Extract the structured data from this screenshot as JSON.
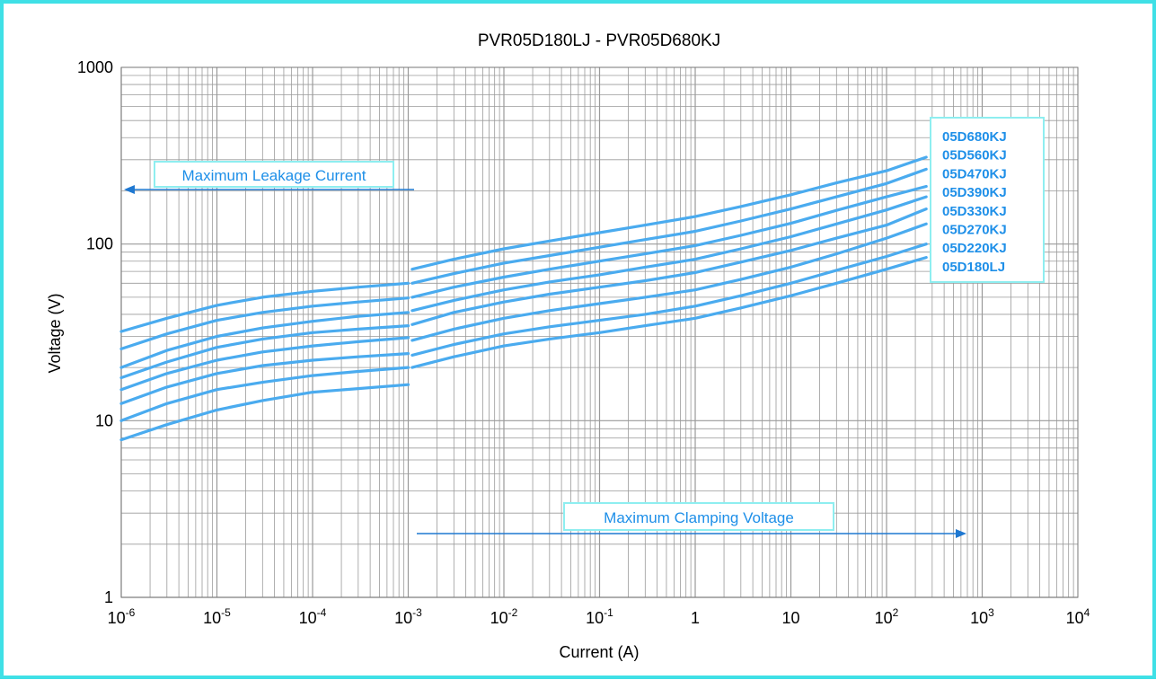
{
  "chart_data": {
    "type": "line",
    "title": "PVR05D180LJ - PVR05D680KJ",
    "xlabel": "Current (A)",
    "ylabel": "Voltage (V)",
    "x_scale": "log",
    "y_scale": "log",
    "xlim": [
      1e-06,
      10000
    ],
    "ylim": [
      1,
      1000
    ],
    "grid": true,
    "x_ticks": [
      {
        "value": 1e-06,
        "base": "10",
        "exp": "-6"
      },
      {
        "value": 1e-05,
        "base": "10",
        "exp": "-5"
      },
      {
        "value": 0.0001,
        "base": "10",
        "exp": "-4"
      },
      {
        "value": 0.001,
        "base": "10",
        "exp": "-3"
      },
      {
        "value": 0.01,
        "base": "10",
        "exp": "-2"
      },
      {
        "value": 0.1,
        "base": "10",
        "exp": "-1"
      },
      {
        "value": 1,
        "base": "1",
        "exp": ""
      },
      {
        "value": 10,
        "base": "10",
        "exp": ""
      },
      {
        "value": 100,
        "base": "10",
        "exp": "2"
      },
      {
        "value": 1000,
        "base": "10",
        "exp": "3"
      },
      {
        "value": 10000,
        "base": "10",
        "exp": "4"
      }
    ],
    "y_ticks": [
      {
        "value": 1,
        "label": "1"
      },
      {
        "value": 10,
        "label": "10"
      },
      {
        "value": 100,
        "label": "100"
      },
      {
        "value": 1000,
        "label": "1000"
      }
    ],
    "annotations": [
      {
        "text": "Maximum Leakage Current",
        "direction": "left",
        "y": 210,
        "x_from": 0.001,
        "x_to": 1e-06
      },
      {
        "text": "Maximum Clamping Voltage",
        "direction": "right",
        "y": 2.38,
        "x_from": 0.0011,
        "x_to": 800
      }
    ],
    "legend_position": "right",
    "colors": {
      "line": "#4aabef",
      "legend_text": "#1e8fe8",
      "legend_border": "#8eeef0",
      "grid": "#9a9a9a",
      "frame": "#3fe0e6",
      "arrow": "#1f78d1"
    },
    "series": [
      {
        "name": "05D680KJ",
        "leakage": [
          [
            1e-06,
            32
          ],
          [
            3e-06,
            38
          ],
          [
            1e-05,
            45
          ],
          [
            3e-05,
            50
          ],
          [
            0.0001,
            54
          ],
          [
            0.0003,
            57
          ],
          [
            0.001,
            60
          ]
        ],
        "clamping": [
          [
            0.0011,
            72
          ],
          [
            0.003,
            82
          ],
          [
            0.01,
            94
          ],
          [
            0.03,
            104
          ],
          [
            0.1,
            116
          ],
          [
            0.3,
            128
          ],
          [
            1,
            143
          ],
          [
            3,
            163
          ],
          [
            10,
            190
          ],
          [
            30,
            222
          ],
          [
            100,
            260
          ],
          [
            260,
            310
          ]
        ]
      },
      {
        "name": "05D560KJ",
        "leakage": [
          [
            1e-06,
            25.5
          ],
          [
            3e-06,
            31
          ],
          [
            1e-05,
            37
          ],
          [
            3e-05,
            41
          ],
          [
            0.0001,
            44.5
          ],
          [
            0.0003,
            47
          ],
          [
            0.001,
            49.5
          ]
        ],
        "clamping": [
          [
            0.0011,
            60
          ],
          [
            0.003,
            68
          ],
          [
            0.01,
            78
          ],
          [
            0.03,
            86
          ],
          [
            0.1,
            96
          ],
          [
            0.3,
            106
          ],
          [
            1,
            118
          ],
          [
            3,
            135
          ],
          [
            10,
            158
          ],
          [
            30,
            185
          ],
          [
            100,
            220
          ],
          [
            260,
            265
          ]
        ]
      },
      {
        "name": "05D470KJ",
        "leakage": [
          [
            1e-06,
            20
          ],
          [
            3e-06,
            25
          ],
          [
            1e-05,
            30
          ],
          [
            3e-05,
            33.5
          ],
          [
            0.0001,
            36.5
          ],
          [
            0.0003,
            39
          ],
          [
            0.001,
            41
          ]
        ],
        "clamping": [
          [
            0.0011,
            50
          ],
          [
            0.003,
            57
          ],
          [
            0.01,
            65
          ],
          [
            0.03,
            72
          ],
          [
            0.1,
            80
          ],
          [
            0.3,
            88
          ],
          [
            1,
            98
          ],
          [
            3,
            112
          ],
          [
            10,
            131
          ],
          [
            30,
            155
          ],
          [
            100,
            185
          ],
          [
            260,
            212
          ]
        ]
      },
      {
        "name": "05D390KJ",
        "leakage": [
          [
            1e-06,
            17.5
          ],
          [
            3e-06,
            21.5
          ],
          [
            1e-05,
            26
          ],
          [
            3e-05,
            29
          ],
          [
            0.0001,
            31.5
          ],
          [
            0.0003,
            33
          ],
          [
            0.001,
            34.5
          ]
        ],
        "clamping": [
          [
            0.0011,
            42
          ],
          [
            0.003,
            48
          ],
          [
            0.01,
            55
          ],
          [
            0.03,
            61
          ],
          [
            0.1,
            67
          ],
          [
            0.3,
            74
          ],
          [
            1,
            82
          ],
          [
            3,
            94
          ],
          [
            10,
            110
          ],
          [
            30,
            130
          ],
          [
            100,
            156
          ],
          [
            260,
            185
          ]
        ]
      },
      {
        "name": "05D330KJ",
        "leakage": [
          [
            1e-06,
            15
          ],
          [
            3e-06,
            18.5
          ],
          [
            1e-05,
            22
          ],
          [
            3e-05,
            24.5
          ],
          [
            0.0001,
            26.5
          ],
          [
            0.0003,
            28
          ],
          [
            0.001,
            29.5
          ]
        ],
        "clamping": [
          [
            0.0011,
            35
          ],
          [
            0.003,
            41
          ],
          [
            0.01,
            47
          ],
          [
            0.03,
            52
          ],
          [
            0.1,
            57
          ],
          [
            0.3,
            62
          ],
          [
            1,
            69
          ],
          [
            3,
            79
          ],
          [
            10,
            92
          ],
          [
            30,
            108
          ],
          [
            100,
            128
          ],
          [
            260,
            158
          ]
        ]
      },
      {
        "name": "05D270KJ",
        "leakage": [
          [
            1e-06,
            12.5
          ],
          [
            3e-06,
            15.5
          ],
          [
            1e-05,
            18.5
          ],
          [
            3e-05,
            20.5
          ],
          [
            0.0001,
            22
          ],
          [
            0.0003,
            23
          ],
          [
            0.001,
            24
          ]
        ],
        "clamping": [
          [
            0.0011,
            28.5
          ],
          [
            0.003,
            33
          ],
          [
            0.01,
            38
          ],
          [
            0.03,
            42
          ],
          [
            0.1,
            46
          ],
          [
            0.3,
            50
          ],
          [
            1,
            55
          ],
          [
            3,
            63
          ],
          [
            10,
            74
          ],
          [
            30,
            88
          ],
          [
            100,
            108
          ],
          [
            260,
            130
          ]
        ]
      },
      {
        "name": "05D220KJ",
        "leakage": [
          [
            1e-06,
            10
          ],
          [
            3e-06,
            12.5
          ],
          [
            1e-05,
            15
          ],
          [
            3e-05,
            16.5
          ],
          [
            0.0001,
            18
          ],
          [
            0.0003,
            19
          ],
          [
            0.001,
            20
          ]
        ],
        "clamping": [
          [
            0.0011,
            23.5
          ],
          [
            0.003,
            27
          ],
          [
            0.01,
            31
          ],
          [
            0.03,
            34
          ],
          [
            0.1,
            37
          ],
          [
            0.3,
            40
          ],
          [
            1,
            44.5
          ],
          [
            3,
            51
          ],
          [
            10,
            60
          ],
          [
            30,
            71
          ],
          [
            100,
            85
          ],
          [
            260,
            100
          ]
        ]
      },
      {
        "name": "05D180LJ",
        "leakage": [
          [
            1e-06,
            7.8
          ],
          [
            3e-06,
            9.5
          ],
          [
            1e-05,
            11.5
          ],
          [
            3e-05,
            13
          ],
          [
            0.0001,
            14.5
          ],
          [
            0.0003,
            15.2
          ],
          [
            0.001,
            16
          ]
        ],
        "clamping": [
          [
            0.0011,
            20
          ],
          [
            0.003,
            23
          ],
          [
            0.01,
            26.5
          ],
          [
            0.03,
            29
          ],
          [
            0.1,
            31.5
          ],
          [
            0.3,
            34.5
          ],
          [
            1,
            38
          ],
          [
            3,
            43.5
          ],
          [
            10,
            51
          ],
          [
            30,
            60
          ],
          [
            100,
            72
          ],
          [
            260,
            84
          ]
        ]
      }
    ]
  }
}
